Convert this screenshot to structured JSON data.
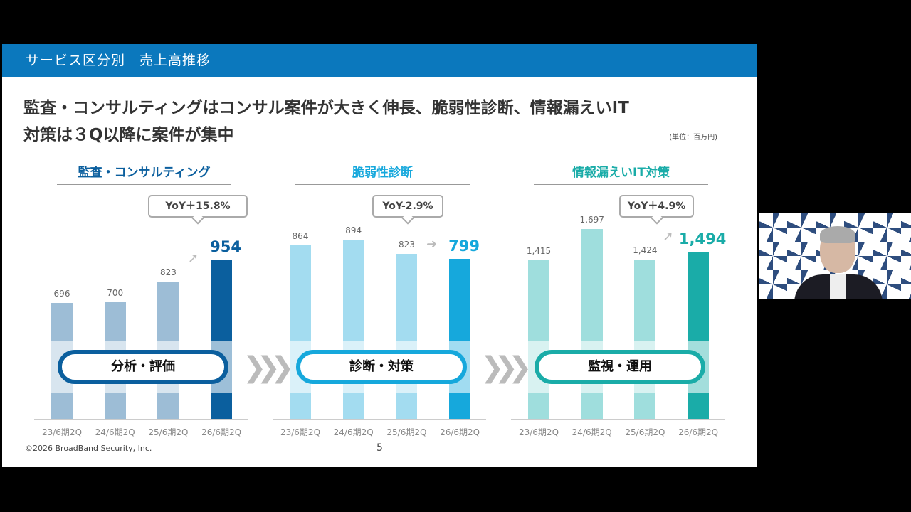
{
  "header": {
    "title": "サービス区分別　売上高推移"
  },
  "headline": [
    "監査・コンサルティングはコンサル案件が大きく伸長、脆弱性診断、情報漏えいIT",
    "対策は３Q以降に案件が集中"
  ],
  "unit": "(単位：百万円)",
  "footer": {
    "copyright": "©2026 BroadBand Security, Inc.",
    "page": "5"
  },
  "chart_data": [
    {
      "type": "bar",
      "title": "監査・コンサルティング",
      "categories": [
        "23/6期2Q",
        "24/6期2Q",
        "25/6期2Q",
        "26/6期2Q"
      ],
      "values": [
        696,
        700,
        823,
        954
      ],
      "value_labels": [
        "696",
        "700",
        "823",
        "954"
      ],
      "ylim": [
        0,
        1150
      ],
      "yoy": "YoY＋15.8%",
      "stage": "分析・評価",
      "colors": {
        "light": "#9dbdd6",
        "dark": "#0b5f9e",
        "title": "#0b5f9e"
      }
    },
    {
      "type": "bar",
      "title": "脆弱性診断",
      "categories": [
        "23/6期2Q",
        "24/6期2Q",
        "25/6期2Q",
        "26/6期2Q"
      ],
      "values": [
        864,
        894,
        823,
        799
      ],
      "value_labels": [
        "864",
        "894",
        "823",
        "799"
      ],
      "ylim": [
        0,
        958
      ],
      "yoy": "YoY-2.9%",
      "stage": "診断・対策",
      "colors": {
        "light": "#a3dcf0",
        "dark": "#16a8dc",
        "title": "#16a8dc"
      }
    },
    {
      "type": "bar",
      "title": "情報漏えいIT対策",
      "categories": [
        "23/6期2Q",
        "24/6期2Q",
        "25/6期2Q",
        "26/6期2Q"
      ],
      "values": [
        1415,
        1697,
        1424,
        1494
      ],
      "value_labels": [
        "1,415",
        "1,697",
        "1,424",
        "1,494"
      ],
      "ylim": [
        0,
        1717
      ],
      "yoy": "YoY＋4.9%",
      "stage": "監視・運用",
      "colors": {
        "light": "#9fdedd",
        "dark": "#1aaca8",
        "title": "#1aaca8"
      }
    }
  ]
}
